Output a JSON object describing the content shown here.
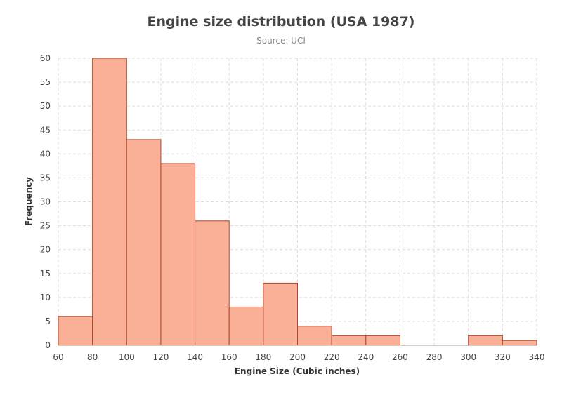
{
  "chart_data": {
    "type": "bar",
    "title": "Engine size distribution (USA 1987)",
    "subtitle": "Source: UCI",
    "xlabel": "Engine Size (Cubic inches)",
    "ylabel": "Frequency",
    "xlim": [
      60,
      340
    ],
    "ylim": [
      0,
      60
    ],
    "x_ticks": [
      60,
      80,
      100,
      120,
      140,
      160,
      180,
      200,
      220,
      240,
      260,
      280,
      300,
      320,
      340
    ],
    "y_ticks": [
      0,
      5,
      10,
      15,
      20,
      25,
      30,
      35,
      40,
      45,
      50,
      55,
      60
    ],
    "grid": true,
    "bins": [
      {
        "x0": 60,
        "x1": 80,
        "value": 6
      },
      {
        "x0": 80,
        "x1": 100,
        "value": 60
      },
      {
        "x0": 100,
        "x1": 120,
        "value": 43
      },
      {
        "x0": 120,
        "x1": 140,
        "value": 38
      },
      {
        "x0": 140,
        "x1": 160,
        "value": 26
      },
      {
        "x0": 160,
        "x1": 180,
        "value": 8
      },
      {
        "x0": 180,
        "x1": 200,
        "value": 13
      },
      {
        "x0": 200,
        "x1": 220,
        "value": 4
      },
      {
        "x0": 220,
        "x1": 240,
        "value": 2
      },
      {
        "x0": 240,
        "x1": 260,
        "value": 2
      },
      {
        "x0": 260,
        "x1": 280,
        "value": 0
      },
      {
        "x0": 280,
        "x1": 300,
        "value": 0
      },
      {
        "x0": 300,
        "x1": 320,
        "value": 2
      },
      {
        "x0": 320,
        "x1": 340,
        "value": 1
      }
    ],
    "colors": {
      "bar_fill": "#f9b096",
      "bar_stroke": "#b0452a",
      "grid": "#dddddd",
      "axis": "#cccccc",
      "tick_label": "#444444",
      "axis_title": "#333333"
    }
  }
}
